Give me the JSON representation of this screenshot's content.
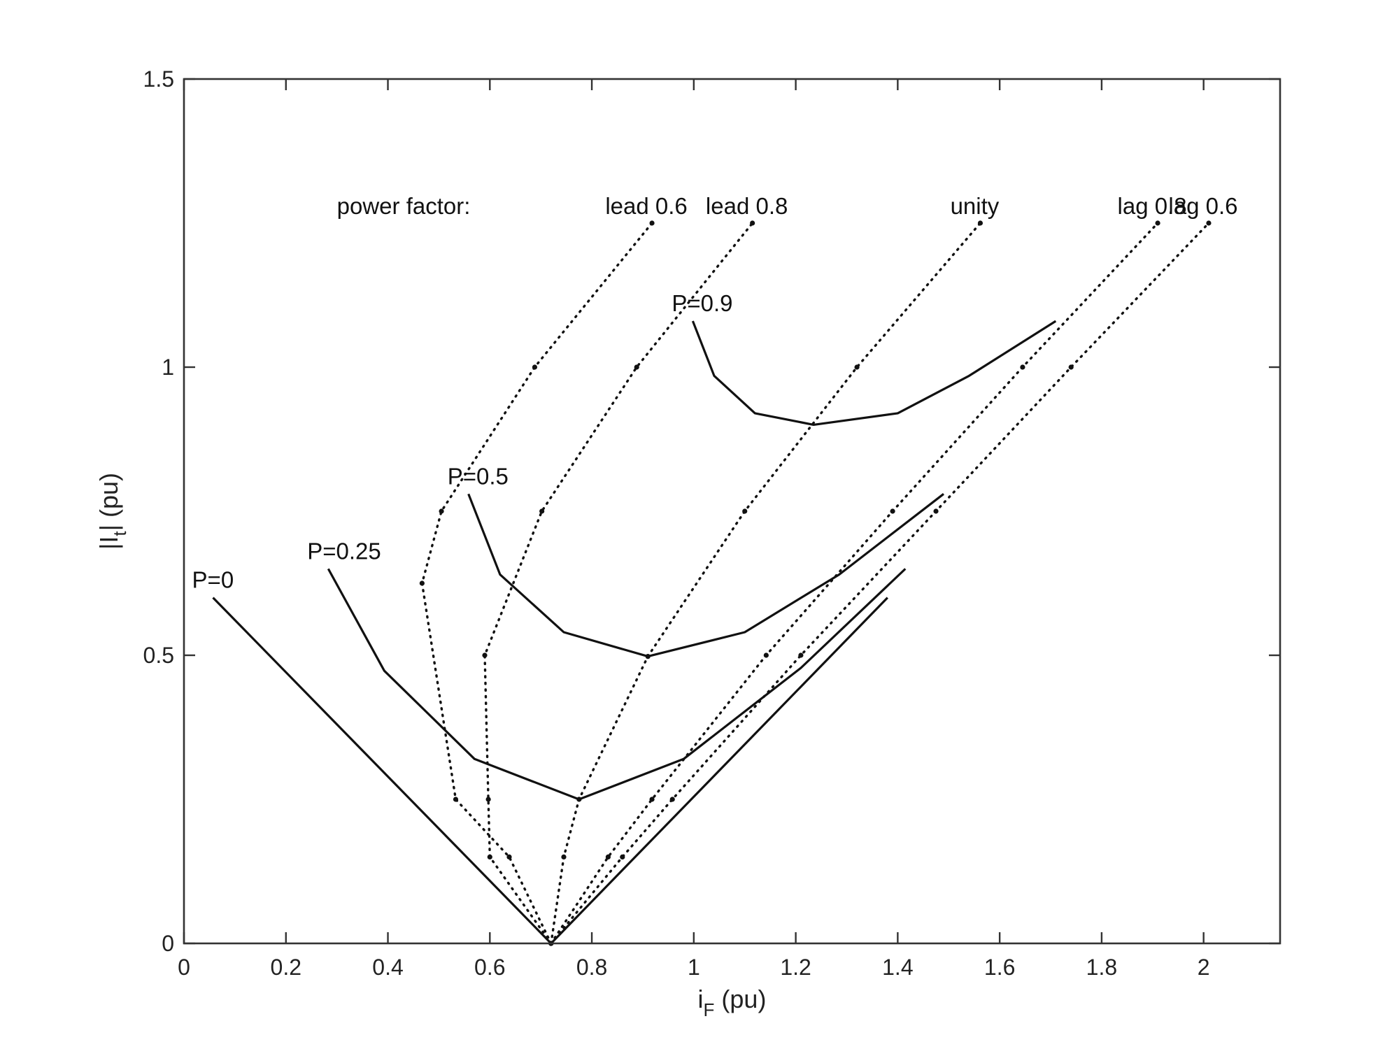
{
  "chart_data": {
    "type": "line",
    "title": "",
    "xlabel": "i",
    "xlabel_sub": "F",
    "xlabel_unit": " (pu)",
    "ylabel": "|I",
    "ylabel_sub": "t",
    "ylabel_unit": "| (pu)",
    "xlim": [
      0,
      2.15
    ],
    "ylim": [
      0,
      1.5
    ],
    "xticks": [
      0,
      0.2,
      0.4,
      0.6,
      0.8,
      1,
      1.2,
      1.4,
      1.6,
      1.8,
      2
    ],
    "xtick_labels": [
      "0",
      "0.2",
      "0.4",
      "0.6",
      "0.8",
      "1",
      "1.2",
      "1.4",
      "1.6",
      "1.8",
      "2"
    ],
    "yticks": [
      0,
      0.5,
      1,
      1.5
    ],
    "ytick_labels": [
      "0",
      "0.5",
      "1",
      "1.5"
    ],
    "grid": false,
    "power_factor_heading": "power factor:",
    "power_curves": [
      {
        "name": "P=0",
        "points": [
          [
            0.057,
            0.6
          ],
          [
            0.72,
            0.0
          ],
          [
            1.38,
            0.6
          ]
        ]
      },
      {
        "name": "P=0.25",
        "points": [
          [
            0.283,
            0.65
          ],
          [
            0.393,
            0.473
          ],
          [
            0.57,
            0.32
          ],
          [
            0.775,
            0.25
          ],
          [
            0.98,
            0.32
          ],
          [
            1.21,
            0.478
          ],
          [
            1.415,
            0.65
          ]
        ]
      },
      {
        "name": "P=0.5",
        "points": [
          [
            0.558,
            0.78
          ],
          [
            0.62,
            0.64
          ],
          [
            0.745,
            0.54
          ],
          [
            0.91,
            0.498
          ],
          [
            1.1,
            0.54
          ],
          [
            1.285,
            0.64
          ],
          [
            1.49,
            0.78
          ]
        ]
      },
      {
        "name": "P=0.9",
        "points": [
          [
            0.998,
            1.08
          ],
          [
            1.04,
            0.985
          ],
          [
            1.12,
            0.92
          ],
          [
            1.235,
            0.9
          ],
          [
            1.4,
            0.92
          ],
          [
            1.54,
            0.985
          ],
          [
            1.71,
            1.08
          ]
        ]
      }
    ],
    "pf_curves": [
      {
        "name": "lead 0.6",
        "points": [
          [
            0.72,
            0.0
          ],
          [
            0.638,
            0.15
          ],
          [
            0.533,
            0.25
          ],
          [
            0.467,
            0.625
          ],
          [
            0.505,
            0.75
          ],
          [
            0.688,
            1.0
          ],
          [
            0.918,
            1.25
          ]
        ]
      },
      {
        "name": "lead 0.8",
        "points": [
          [
            0.72,
            0.0
          ],
          [
            0.6,
            0.15
          ],
          [
            0.597,
            0.25
          ],
          [
            0.59,
            0.5
          ],
          [
            0.702,
            0.75
          ],
          [
            0.888,
            1.0
          ],
          [
            1.115,
            1.25
          ]
        ]
      },
      {
        "name": "unity",
        "points": [
          [
            0.72,
            0.0
          ],
          [
            0.745,
            0.15
          ],
          [
            0.775,
            0.25
          ],
          [
            0.91,
            0.498
          ],
          [
            1.1,
            0.75
          ],
          [
            1.32,
            1.0
          ],
          [
            1.562,
            1.25
          ]
        ]
      },
      {
        "name": "lag 0.8",
        "points": [
          [
            0.72,
            0.0
          ],
          [
            0.832,
            0.15
          ],
          [
            0.918,
            0.25
          ],
          [
            1.142,
            0.5
          ],
          [
            1.39,
            0.75
          ],
          [
            1.645,
            1.0
          ],
          [
            1.91,
            1.25
          ]
        ]
      },
      {
        "name": "lag 0.6",
        "points": [
          [
            0.72,
            0.0
          ],
          [
            0.86,
            0.15
          ],
          [
            0.958,
            0.25
          ],
          [
            1.21,
            0.5
          ],
          [
            1.475,
            0.75
          ],
          [
            1.74,
            1.0
          ],
          [
            2.01,
            1.25
          ]
        ]
      }
    ]
  }
}
